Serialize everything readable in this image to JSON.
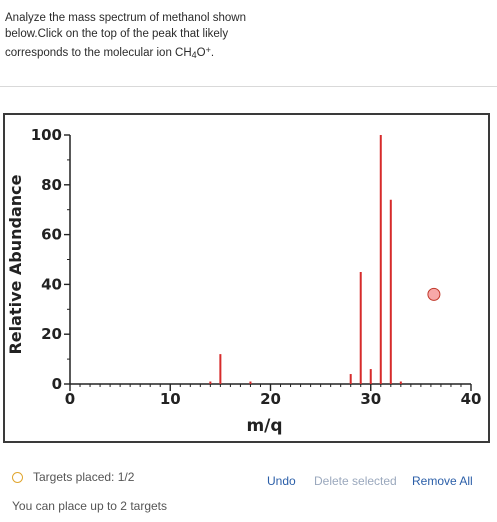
{
  "question": {
    "line1": "Analyze the mass spectrum of methanol shown",
    "line2": "below.Click on the top of the peak that likely",
    "line3_prefix": "corresponds to the molecular ion CH",
    "sub": "4",
    "mid": "O",
    "sup": "+",
    "suffix": "."
  },
  "chart_data": {
    "type": "bar",
    "xlabel": "m/q",
    "ylabel": "Relative Abundance",
    "xlim": [
      0,
      40
    ],
    "ylim": [
      0,
      100
    ],
    "x_ticks": [
      "0",
      "10",
      "20",
      "30",
      "40"
    ],
    "y_ticks": [
      "0",
      "20",
      "40",
      "60",
      "80",
      "100"
    ],
    "bar_color": "#d62b2b",
    "peaks": [
      {
        "x": 14,
        "y": 1
      },
      {
        "x": 15,
        "y": 12
      },
      {
        "x": 18,
        "y": 1
      },
      {
        "x": 28,
        "y": 4
      },
      {
        "x": 29,
        "y": 45
      },
      {
        "x": 30,
        "y": 6
      },
      {
        "x": 31,
        "y": 100
      },
      {
        "x": 32,
        "y": 74
      },
      {
        "x": 33,
        "y": 1
      }
    ],
    "placed_marker": {
      "x": 36.3,
      "y": 36,
      "fill": "#f7a8a8",
      "stroke": "#c0392b"
    }
  },
  "footer": {
    "status": "Targets placed: 1/2",
    "hint": "You can place up to 2 targets",
    "undo": "Undo",
    "delete": "Delete selected",
    "remove_all": "Remove All"
  }
}
